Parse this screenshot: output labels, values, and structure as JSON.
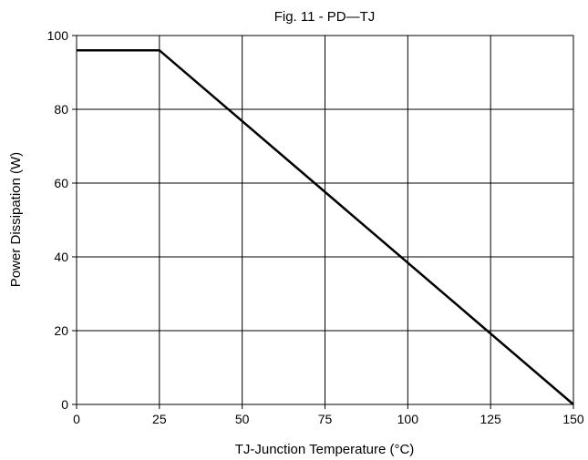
{
  "chart_data": {
    "type": "line",
    "title": "Fig. 11 - PD—TJ",
    "xlabel": "TJ-Junction Temperature (°C)",
    "ylabel": "Power Dissipation  (W)",
    "xlim": [
      0,
      150
    ],
    "ylim": [
      0,
      100
    ],
    "xticks": [
      0,
      25,
      50,
      75,
      100,
      125,
      150
    ],
    "yticks": [
      0,
      20,
      40,
      60,
      80,
      100
    ],
    "grid": true,
    "series": [
      {
        "x": [
          0,
          25,
          150
        ],
        "y": [
          96,
          96,
          0
        ],
        "color": "#000000"
      }
    ]
  }
}
